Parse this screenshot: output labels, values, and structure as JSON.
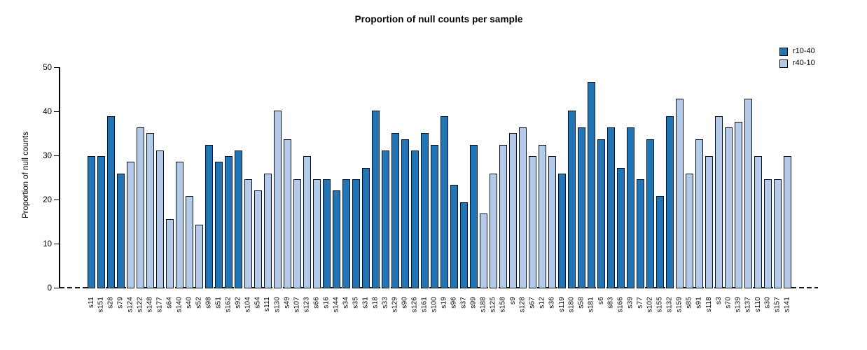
{
  "chart_data": {
    "type": "bar",
    "title": "Proportion of null counts per sample",
    "xlabel": "",
    "ylabel": "Proportion of null counts",
    "ylim": [
      0,
      50
    ],
    "yticks": [
      0,
      10,
      20,
      30,
      40,
      50
    ],
    "grid": false,
    "legend_position": "top-right",
    "baseline_style": "dashed",
    "series": [
      {
        "name": "r10-40",
        "color": "#2274b2"
      },
      {
        "name": "r40-10",
        "color": "#b5cae8"
      }
    ],
    "bars": [
      {
        "label": "s11",
        "value": 29.9,
        "series": "r10-40"
      },
      {
        "label": "s151",
        "value": 29.9,
        "series": "r10-40"
      },
      {
        "label": "s28",
        "value": 39.0,
        "series": "r10-40"
      },
      {
        "label": "s79",
        "value": 26.0,
        "series": "r10-40"
      },
      {
        "label": "s124",
        "value": 28.6,
        "series": "r40-10"
      },
      {
        "label": "s122",
        "value": 36.4,
        "series": "r40-10"
      },
      {
        "label": "s148",
        "value": 35.1,
        "series": "r40-10"
      },
      {
        "label": "s177",
        "value": 31.2,
        "series": "r40-10"
      },
      {
        "label": "s64",
        "value": 15.6,
        "series": "r40-10"
      },
      {
        "label": "s140",
        "value": 28.6,
        "series": "r40-10"
      },
      {
        "label": "s40",
        "value": 20.8,
        "series": "r40-10"
      },
      {
        "label": "s52",
        "value": 14.3,
        "series": "r40-10"
      },
      {
        "label": "s98",
        "value": 32.5,
        "series": "r10-40"
      },
      {
        "label": "s51",
        "value": 28.6,
        "series": "r10-40"
      },
      {
        "label": "s162",
        "value": 29.9,
        "series": "r10-40"
      },
      {
        "label": "s92",
        "value": 31.2,
        "series": "r10-40"
      },
      {
        "label": "s104",
        "value": 24.7,
        "series": "r40-10"
      },
      {
        "label": "s54",
        "value": 22.1,
        "series": "r40-10"
      },
      {
        "label": "s111",
        "value": 26.0,
        "series": "r40-10"
      },
      {
        "label": "s130",
        "value": 40.3,
        "series": "r40-10"
      },
      {
        "label": "s49",
        "value": 33.8,
        "series": "r40-10"
      },
      {
        "label": "s107",
        "value": 24.7,
        "series": "r40-10"
      },
      {
        "label": "s123",
        "value": 29.9,
        "series": "r40-10"
      },
      {
        "label": "s66",
        "value": 24.7,
        "series": "r40-10"
      },
      {
        "label": "s16",
        "value": 24.7,
        "series": "r10-40"
      },
      {
        "label": "s144",
        "value": 22.1,
        "series": "r10-40"
      },
      {
        "label": "s34",
        "value": 24.7,
        "series": "r10-40"
      },
      {
        "label": "s35",
        "value": 24.7,
        "series": "r10-40"
      },
      {
        "label": "s31",
        "value": 27.3,
        "series": "r10-40"
      },
      {
        "label": "s18",
        "value": 40.3,
        "series": "r10-40"
      },
      {
        "label": "s33",
        "value": 31.2,
        "series": "r10-40"
      },
      {
        "label": "s129",
        "value": 35.1,
        "series": "r10-40"
      },
      {
        "label": "s90",
        "value": 33.8,
        "series": "r10-40"
      },
      {
        "label": "s126",
        "value": 31.2,
        "series": "r10-40"
      },
      {
        "label": "s161",
        "value": 35.1,
        "series": "r10-40"
      },
      {
        "label": "s100",
        "value": 32.5,
        "series": "r10-40"
      },
      {
        "label": "s19",
        "value": 39.0,
        "series": "r10-40"
      },
      {
        "label": "s96",
        "value": 23.4,
        "series": "r10-40"
      },
      {
        "label": "s37",
        "value": 19.5,
        "series": "r10-40"
      },
      {
        "label": "s99",
        "value": 32.5,
        "series": "r10-40"
      },
      {
        "label": "s188",
        "value": 16.9,
        "series": "r40-10"
      },
      {
        "label": "s125",
        "value": 26.0,
        "series": "r40-10"
      },
      {
        "label": "s158",
        "value": 32.5,
        "series": "r40-10"
      },
      {
        "label": "s9",
        "value": 35.1,
        "series": "r40-10"
      },
      {
        "label": "s128",
        "value": 36.4,
        "series": "r40-10"
      },
      {
        "label": "s67",
        "value": 29.9,
        "series": "r40-10"
      },
      {
        "label": "s12",
        "value": 32.5,
        "series": "r40-10"
      },
      {
        "label": "s36",
        "value": 29.9,
        "series": "r40-10"
      },
      {
        "label": "s119",
        "value": 26.0,
        "series": "r10-40"
      },
      {
        "label": "s180",
        "value": 40.3,
        "series": "r10-40"
      },
      {
        "label": "s58",
        "value": 36.4,
        "series": "r10-40"
      },
      {
        "label": "s181",
        "value": 46.8,
        "series": "r10-40"
      },
      {
        "label": "s6",
        "value": 33.8,
        "series": "r10-40"
      },
      {
        "label": "s83",
        "value": 36.4,
        "series": "r10-40"
      },
      {
        "label": "s166",
        "value": 27.3,
        "series": "r10-40"
      },
      {
        "label": "s39",
        "value": 36.4,
        "series": "r10-40"
      },
      {
        "label": "s77",
        "value": 24.7,
        "series": "r10-40"
      },
      {
        "label": "s102",
        "value": 33.8,
        "series": "r10-40"
      },
      {
        "label": "s155",
        "value": 20.8,
        "series": "r10-40"
      },
      {
        "label": "s132",
        "value": 39.0,
        "series": "r10-40"
      },
      {
        "label": "s159",
        "value": 42.9,
        "series": "r40-10"
      },
      {
        "label": "s85",
        "value": 26.0,
        "series": "r40-10"
      },
      {
        "label": "s91",
        "value": 33.8,
        "series": "r40-10"
      },
      {
        "label": "s118",
        "value": 29.9,
        "series": "r40-10"
      },
      {
        "label": "s3",
        "value": 39.0,
        "series": "r40-10"
      },
      {
        "label": "s70",
        "value": 36.4,
        "series": "r40-10"
      },
      {
        "label": "s139",
        "value": 37.7,
        "series": "r40-10"
      },
      {
        "label": "s137",
        "value": 42.9,
        "series": "r40-10"
      },
      {
        "label": "s110",
        "value": 29.9,
        "series": "r40-10"
      },
      {
        "label": "s30",
        "value": 24.7,
        "series": "r40-10"
      },
      {
        "label": "s157",
        "value": 24.7,
        "series": "r40-10"
      },
      {
        "label": "s141",
        "value": 29.9,
        "series": "r40-10"
      }
    ]
  }
}
